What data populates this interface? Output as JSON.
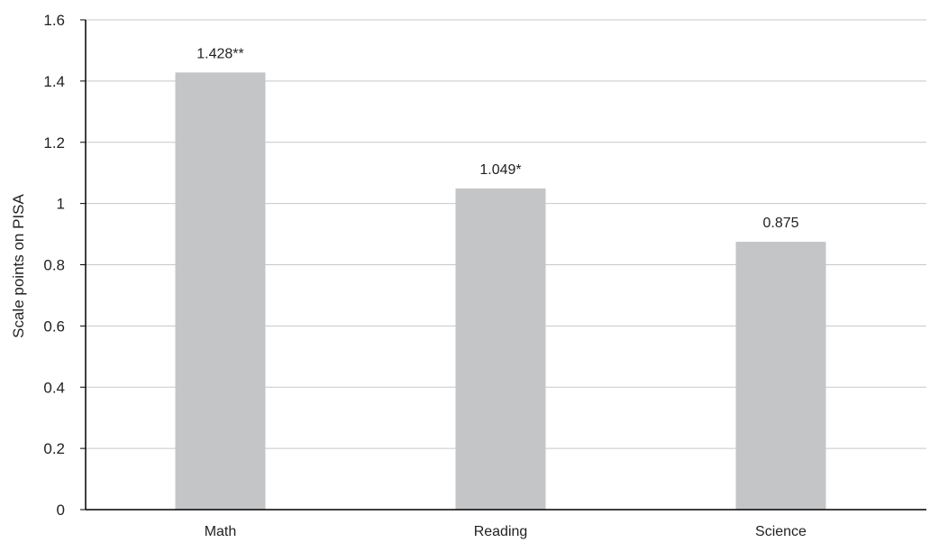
{
  "chart_data": {
    "type": "bar",
    "title": "",
    "xlabel": "",
    "ylabel": "Scale points on PISA",
    "categories": [
      "Math",
      "Reading",
      "Science"
    ],
    "values": [
      1.428,
      1.049,
      0.875
    ],
    "data_labels": [
      "1.428**",
      "1.049*",
      "0.875"
    ],
    "ylim": [
      0,
      1.6
    ],
    "yticks": [
      0,
      0.2,
      0.4,
      0.6,
      0.8,
      1,
      1.2,
      1.4,
      1.6
    ],
    "ytick_labels": [
      "0",
      "0.2",
      "0.4",
      "0.6",
      "0.8",
      "1",
      "1.2",
      "1.4",
      "1.6"
    ],
    "grid": true,
    "legend": "none",
    "bar_color": "#c4c5c7",
    "grid_color": "#c8c8c8",
    "axis_color": "#000000"
  }
}
